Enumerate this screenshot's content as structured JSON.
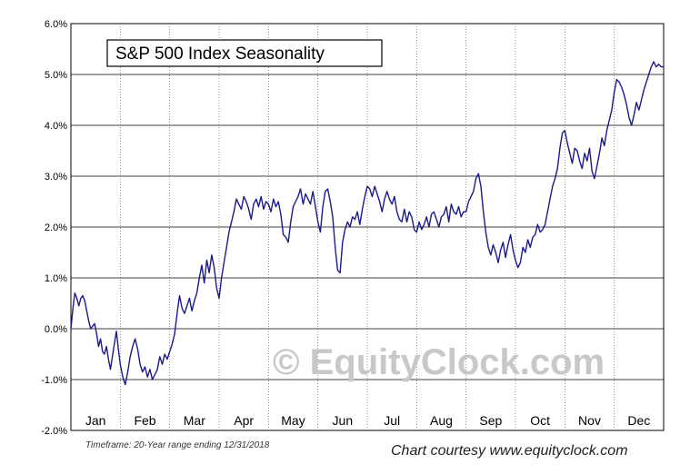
{
  "chart_data": {
    "type": "line",
    "title": "S&P 500 Index Seasonality",
    "xlabel": "",
    "ylabel": "",
    "ylim": [
      -2.0,
      6.0
    ],
    "y_ticks": [
      "-2.0%",
      "-1.0%",
      "0.0%",
      "1.0%",
      "2.0%",
      "3.0%",
      "4.0%",
      "5.0%",
      "6.0%"
    ],
    "categories": [
      "Jan",
      "Feb",
      "Mar",
      "Apr",
      "May",
      "Jun",
      "Jul",
      "Aug",
      "Sep",
      "Oct",
      "Nov",
      "Dec"
    ],
    "grid": "horizontal at each 1% and vertical between months",
    "line_color": "#1a1a8c",
    "series": [
      {
        "x": [
          0.0,
          0.04,
          0.08,
          0.12,
          0.16,
          0.2,
          0.24,
          0.28,
          0.32,
          0.36,
          0.4,
          0.44,
          0.48,
          0.52,
          0.56,
          0.6,
          0.64,
          0.68,
          0.72,
          0.76,
          0.8,
          0.84,
          0.88,
          0.92,
          0.96,
          1.0,
          1.05,
          1.1,
          1.15,
          1.2,
          1.25,
          1.3,
          1.35,
          1.4,
          1.45,
          1.5,
          1.55,
          1.6,
          1.65,
          1.7,
          1.75,
          1.8,
          1.85,
          1.9,
          1.95,
          2.0,
          2.05,
          2.1,
          2.15,
          2.2,
          2.25,
          2.3,
          2.35,
          2.4,
          2.45,
          2.5,
          2.55,
          2.6,
          2.65,
          2.7,
          2.75,
          2.8,
          2.85,
          2.9,
          2.95,
          3.0,
          3.05,
          3.1,
          3.15,
          3.2,
          3.25,
          3.3,
          3.35,
          3.4,
          3.45,
          3.5,
          3.55,
          3.6,
          3.65,
          3.7,
          3.75,
          3.8,
          3.85,
          3.9,
          3.95,
          4.0,
          4.05,
          4.1,
          4.15,
          4.2,
          4.25,
          4.3,
          4.35,
          4.4,
          4.45,
          4.5,
          4.55,
          4.6,
          4.65,
          4.7,
          4.75,
          4.8,
          4.85,
          4.9,
          4.95,
          5.0,
          5.05,
          5.1,
          5.15,
          5.2,
          5.25,
          5.3,
          5.35,
          5.4,
          5.45,
          5.5,
          5.55,
          5.6,
          5.65,
          5.7,
          5.75,
          5.8,
          5.85,
          5.9,
          5.95,
          6.0,
          6.05,
          6.1,
          6.15,
          6.2,
          6.25,
          6.3,
          6.35,
          6.4,
          6.45,
          6.5,
          6.55,
          6.6,
          6.65,
          6.7,
          6.75,
          6.8,
          6.85,
          6.9,
          6.95,
          7.0,
          7.05,
          7.1,
          7.15,
          7.2,
          7.25,
          7.3,
          7.35,
          7.4,
          7.45,
          7.5,
          7.55,
          7.6,
          7.65,
          7.7,
          7.75,
          7.8,
          7.85,
          7.9,
          7.95,
          8.0,
          8.05,
          8.1,
          8.15,
          8.2,
          8.25,
          8.3,
          8.35,
          8.4,
          8.45,
          8.5,
          8.55,
          8.6,
          8.65,
          8.7,
          8.75,
          8.8,
          8.85,
          8.9,
          8.95,
          9.0,
          9.05,
          9.1,
          9.15,
          9.2,
          9.25,
          9.3,
          9.35,
          9.4,
          9.45,
          9.5,
          9.55,
          9.6,
          9.65,
          9.7,
          9.75,
          9.8,
          9.85,
          9.9,
          9.95,
          10.0,
          10.05,
          10.1,
          10.15,
          10.2,
          10.25,
          10.3,
          10.35,
          10.4,
          10.45,
          10.5,
          10.55,
          10.6,
          10.65,
          10.7,
          10.75,
          10.8,
          10.85,
          10.9,
          10.95,
          11.0,
          11.05,
          11.1,
          11.15,
          11.2,
          11.25,
          11.3,
          11.35,
          11.4,
          11.45,
          11.5,
          11.55,
          11.6,
          11.65,
          11.7,
          11.75,
          11.8,
          11.85,
          11.9,
          11.95,
          12.0
        ],
        "values": [
          0.0,
          0.4,
          0.7,
          0.6,
          0.45,
          0.6,
          0.65,
          0.55,
          0.35,
          0.15,
          0.0,
          0.05,
          0.1,
          -0.1,
          -0.35,
          -0.2,
          -0.45,
          -0.5,
          -0.35,
          -0.6,
          -0.8,
          -0.55,
          -0.3,
          -0.05,
          -0.4,
          -0.7,
          -0.95,
          -1.1,
          -0.85,
          -0.55,
          -0.35,
          -0.2,
          -0.4,
          -0.7,
          -0.85,
          -0.75,
          -0.95,
          -0.8,
          -1.0,
          -0.9,
          -0.8,
          -0.55,
          -0.7,
          -0.5,
          -0.6,
          -0.45,
          -0.3,
          -0.1,
          0.3,
          0.65,
          0.4,
          0.3,
          0.45,
          0.6,
          0.35,
          0.55,
          0.7,
          1.0,
          1.25,
          0.9,
          1.35,
          1.1,
          1.45,
          1.2,
          0.8,
          0.6,
          1.0,
          1.3,
          1.6,
          1.9,
          2.1,
          2.3,
          2.55,
          2.45,
          2.35,
          2.6,
          2.5,
          2.35,
          2.15,
          2.45,
          2.55,
          2.4,
          2.6,
          2.35,
          2.5,
          2.45,
          2.3,
          2.55,
          2.4,
          2.5,
          2.25,
          1.85,
          1.8,
          1.7,
          2.1,
          2.4,
          2.5,
          2.6,
          2.75,
          2.45,
          2.65,
          2.55,
          2.45,
          2.7,
          2.4,
          2.1,
          1.9,
          2.4,
          2.7,
          2.75,
          2.5,
          2.2,
          1.6,
          1.15,
          1.1,
          1.7,
          1.95,
          2.1,
          2.0,
          2.2,
          2.15,
          2.3,
          2.05,
          2.35,
          2.6,
          2.8,
          2.75,
          2.6,
          2.8,
          2.65,
          2.5,
          2.3,
          2.55,
          2.7,
          2.55,
          2.45,
          2.6,
          2.3,
          2.15,
          2.1,
          2.35,
          2.1,
          2.3,
          2.2,
          1.95,
          1.9,
          2.1,
          1.95,
          2.05,
          2.2,
          2.0,
          2.25,
          2.3,
          2.15,
          2.0,
          2.2,
          2.25,
          2.4,
          2.1,
          2.45,
          2.3,
          2.25,
          2.4,
          2.2,
          2.3,
          2.3,
          2.5,
          2.6,
          2.7,
          2.95,
          3.05,
          2.8,
          2.3,
          1.9,
          1.6,
          1.45,
          1.65,
          1.5,
          1.3,
          1.55,
          1.7,
          1.4,
          1.65,
          1.85,
          1.55,
          1.35,
          1.2,
          1.3,
          1.6,
          1.5,
          1.75,
          1.6,
          1.8,
          1.85,
          2.05,
          1.9,
          1.95,
          2.05,
          2.3,
          2.55,
          2.8,
          2.95,
          3.15,
          3.55,
          3.85,
          3.9,
          3.65,
          3.45,
          3.25,
          3.55,
          3.5,
          3.3,
          3.15,
          3.45,
          3.3,
          3.55,
          3.1,
          2.95,
          3.2,
          3.45,
          3.75,
          3.6,
          3.9,
          4.1,
          4.3,
          4.65,
          4.9,
          4.85,
          4.75,
          4.6,
          4.4,
          4.15,
          4.0,
          4.2,
          4.45,
          4.3,
          4.5,
          4.7,
          4.85,
          5.0,
          5.15,
          5.25,
          5.15,
          5.2,
          5.15,
          5.15
        ]
      }
    ],
    "watermark": "© EquityClock.com",
    "footnote": "Timeframe: 20-Year range ending 12/31/2018",
    "courtesy": "Chart courtesy www.equityclock.com"
  }
}
